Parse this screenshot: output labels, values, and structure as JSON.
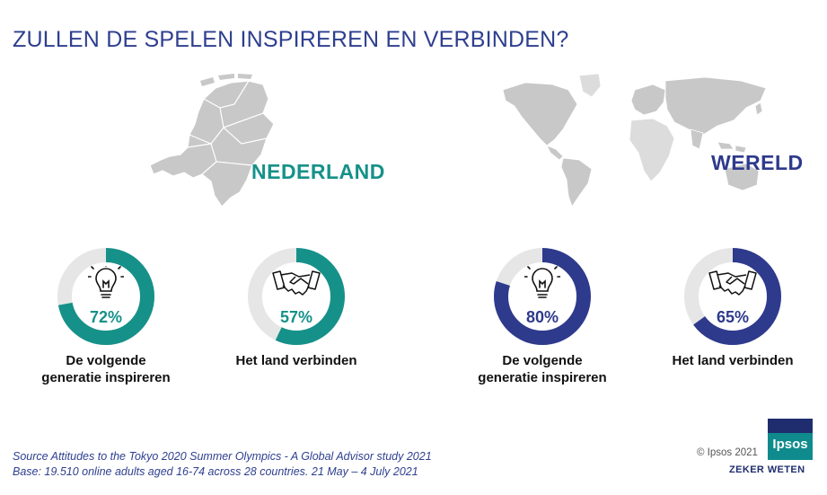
{
  "title": "ZULLEN DE SPELEN INSPIREREN EN VERBINDEN?",
  "regions": {
    "nl": "NEDERLAND",
    "world": "WERELD"
  },
  "colors": {
    "title": "#2e3f8f",
    "nl_accent": "#169189",
    "world_accent": "#2e3a8c",
    "track": "#e6e6e6",
    "map_fill": "#c8c8c8"
  },
  "chart_data": {
    "type": "donut",
    "title": "ZULLEN DE SPELEN INSPIREREN EN VERBINDEN?",
    "groups": [
      {
        "name": "NEDERLAND",
        "items": [
          {
            "label": "De volgende generatie inspireren",
            "value": 72,
            "display": "72%",
            "icon": "lightbulb-icon"
          },
          {
            "label": "Het land verbinden",
            "value": 57,
            "display": "57%",
            "icon": "handshake-icon"
          }
        ]
      },
      {
        "name": "WERELD",
        "items": [
          {
            "label": "De volgende generatie inspireren",
            "value": 80,
            "display": "80%",
            "icon": "lightbulb-icon"
          },
          {
            "label": "Het land verbinden",
            "value": 65,
            "display": "65%",
            "icon": "handshake-icon"
          }
        ]
      }
    ],
    "unit": "%",
    "max": 100
  },
  "captions": {
    "nl_inspire_line1": "De volgende",
    "nl_inspire_line2": "generatie inspireren",
    "nl_connect": "Het land verbinden",
    "world_inspire_line1": "De volgende",
    "world_inspire_line2": "generatie inspireren",
    "world_connect": "Het land verbinden"
  },
  "footer": {
    "source_line1": "Source Attitudes to the Tokyo 2020 Summer Olympics - A  Global Advisor  study 2021",
    "source_line2": "Base: 19.510 online adults aged 16-74 across 28 countries. 21 May – 4 July 2021",
    "copyright": "© Ipsos 2021",
    "logo_text": "Ipsos",
    "tagline": "ZEKER WETEN"
  }
}
